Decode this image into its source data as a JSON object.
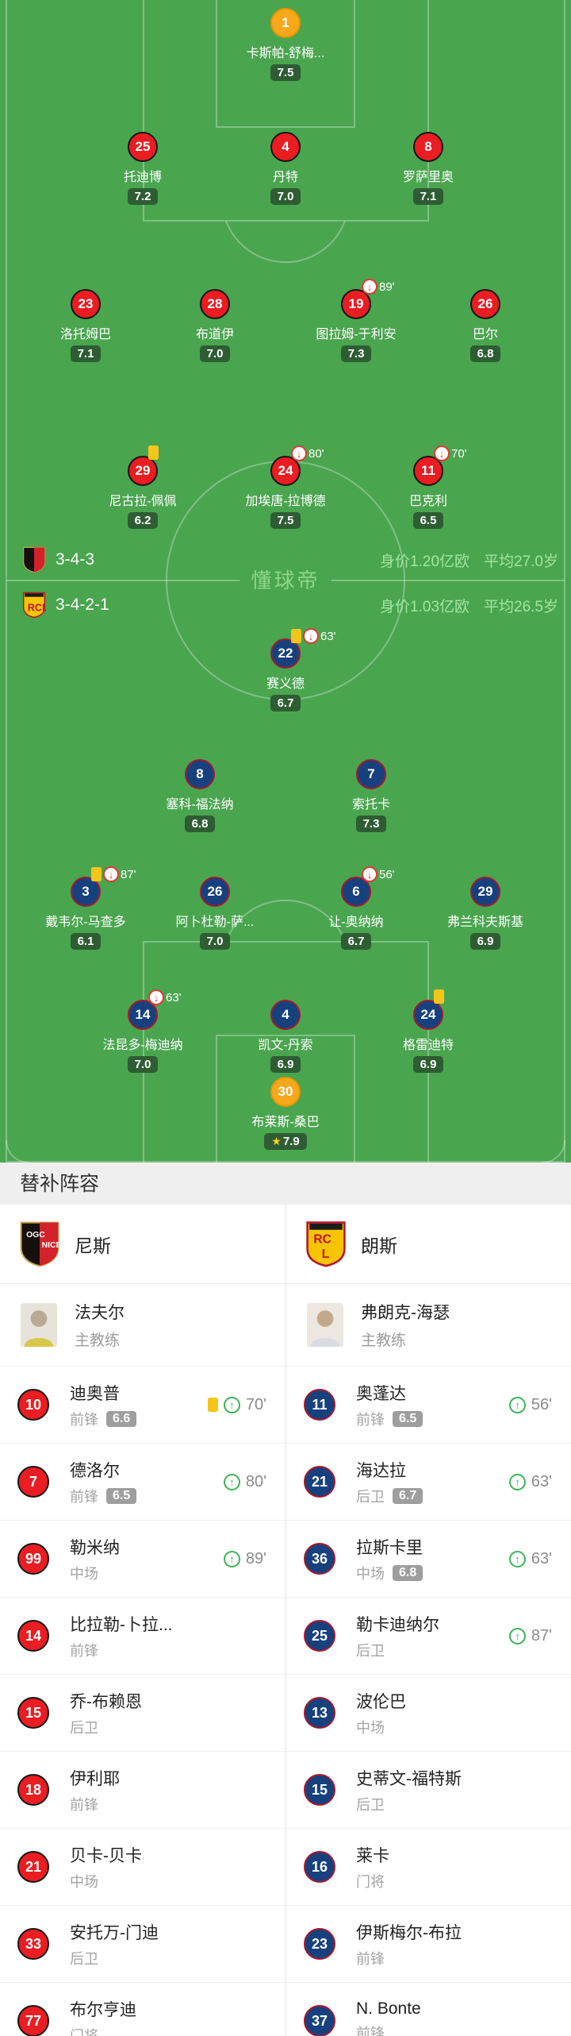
{
  "pitch": {
    "watermark": "懂球帝",
    "colors": {
      "pitch_green": "#4aa54f",
      "rating_badge_green": "#2e5d33",
      "nice_red": "#e91d22",
      "lens_navy": "#17417e",
      "lens_border_red": "#a5192d",
      "gk_orange": "#f7a81b",
      "yellow_card": "#f6c51b",
      "sub_off_red": "#dd3b33",
      "sub_on_green": "#3ab556",
      "value_text_green": "#a0e69d"
    },
    "teams": [
      {
        "name": "尼斯",
        "formation": "3-4-3",
        "market_value": "身价1.20亿欧",
        "avg_age": "平均27.0岁",
        "rows": [
          [
            {
              "num": "1",
              "name": "卡斯帕-舒梅...",
              "rating": "7.5",
              "gk": true
            }
          ],
          [
            {
              "num": "25",
              "name": "托迪博",
              "rating": "7.2"
            },
            {
              "num": "4",
              "name": "丹特",
              "rating": "7.0"
            },
            {
              "num": "8",
              "name": "罗萨里奥",
              "rating": "7.1"
            }
          ],
          [
            {
              "num": "23",
              "name": "洛托姆巴",
              "rating": "7.1"
            },
            {
              "num": "28",
              "name": "布道伊",
              "rating": "7.0"
            },
            {
              "num": "19",
              "name": "图拉姆-于利安",
              "rating": "7.3",
              "sub_off": "89'"
            },
            {
              "num": "26",
              "name": "巴尔",
              "rating": "6.8"
            }
          ],
          [
            {
              "num": "29",
              "name": "尼古拉-佩佩",
              "rating": "6.2",
              "yellow": true
            },
            {
              "num": "24",
              "name": "加埃唐-拉博德",
              "rating": "7.5",
              "sub_off": "80'"
            },
            {
              "num": "11",
              "name": "巴克利",
              "rating": "6.5",
              "sub_off": "70'"
            }
          ]
        ]
      },
      {
        "name": "朗斯",
        "formation": "3-4-2-1",
        "market_value": "身价1.03亿欧",
        "avg_age": "平均26.5岁",
        "rows": [
          [
            {
              "num": "22",
              "name": "赛义德",
              "rating": "6.7",
              "yellow": true,
              "sub_off": "63'"
            }
          ],
          [
            {
              "num": "8",
              "name": "塞科-福法纳",
              "rating": "6.8"
            },
            {
              "num": "7",
              "name": "索托卡",
              "rating": "7.3"
            }
          ],
          [
            {
              "num": "3",
              "name": "戴韦尔-马查多",
              "rating": "6.1",
              "yellow": true,
              "sub_off": "87'"
            },
            {
              "num": "26",
              "name": "阿卜杜勒-萨...",
              "rating": "7.0"
            },
            {
              "num": "6",
              "name": "让-奥纳纳",
              "rating": "6.7",
              "sub_off": "56'"
            },
            {
              "num": "29",
              "name": "弗兰科夫斯基",
              "rating": "6.9"
            }
          ],
          [
            {
              "num": "14",
              "name": "法昆多-梅迪纳",
              "rating": "7.0",
              "sub_off": "63'"
            },
            {
              "num": "4",
              "name": "凯文-丹索",
              "rating": "6.9"
            },
            {
              "num": "24",
              "name": "格雷迪特",
              "rating": "6.9",
              "yellow": true
            }
          ],
          [
            {
              "num": "30",
              "name": "布莱斯-桑巴",
              "rating": "7.9",
              "gk": true,
              "star": true
            }
          ]
        ]
      }
    ]
  },
  "subs": {
    "title": "替补阵容",
    "columns": [
      {
        "team": "尼斯",
        "coach": {
          "name": "法夫尔",
          "role": "主教练"
        },
        "players": [
          {
            "num": "10",
            "name": "迪奥普",
            "pos": "前锋",
            "rating": "6.6",
            "yellow": true,
            "sub_on": "70'"
          },
          {
            "num": "7",
            "name": "德洛尔",
            "pos": "前锋",
            "rating": "6.5",
            "sub_on": "80'"
          },
          {
            "num": "99",
            "name": "勒米纳",
            "pos": "中场",
            "sub_on": "89'"
          },
          {
            "num": "14",
            "name": "比拉勒-卜拉...",
            "pos": "前锋"
          },
          {
            "num": "15",
            "name": "乔-布赖恩",
            "pos": "后卫"
          },
          {
            "num": "18",
            "name": "伊利耶",
            "pos": "前锋"
          },
          {
            "num": "21",
            "name": "贝卡-贝卡",
            "pos": "中场"
          },
          {
            "num": "33",
            "name": "安托万-门迪",
            "pos": "后卫"
          },
          {
            "num": "77",
            "name": "布尔亨迪",
            "pos": "门将"
          }
        ]
      },
      {
        "team": "朗斯",
        "coach": {
          "name": "弗朗克-海瑟",
          "role": "主教练"
        },
        "players": [
          {
            "num": "11",
            "name": "奥蓬达",
            "pos": "前锋",
            "rating": "6.5",
            "sub_on": "56'"
          },
          {
            "num": "21",
            "name": "海达拉",
            "pos": "后卫",
            "rating": "6.7",
            "sub_on": "63'"
          },
          {
            "num": "36",
            "name": "拉斯卡里",
            "pos": "中场",
            "rating": "6.8",
            "sub_on": "63'"
          },
          {
            "num": "25",
            "name": "勒卡迪纳尔",
            "pos": "后卫",
            "sub_on": "87'"
          },
          {
            "num": "13",
            "name": "波伦巴",
            "pos": "中场"
          },
          {
            "num": "15",
            "name": "史蒂文-福特斯",
            "pos": "后卫"
          },
          {
            "num": "16",
            "name": "莱卡",
            "pos": "门将"
          },
          {
            "num": "23",
            "name": "伊斯梅尔-布拉",
            "pos": "前锋"
          },
          {
            "num": "37",
            "name": "N. Bonte",
            "pos": "前锋"
          }
        ]
      }
    ]
  }
}
